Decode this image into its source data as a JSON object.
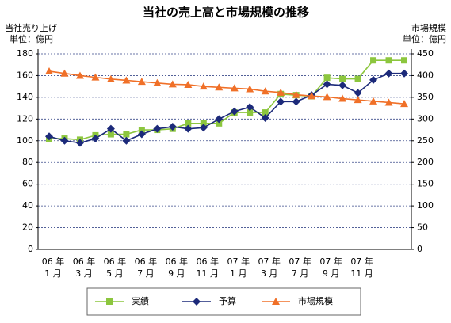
{
  "chart_data": {
    "type": "line",
    "title": "当社の売上高と市場規模の推移",
    "y_label": [
      "当社売り上げ",
      "単位：億円"
    ],
    "y2_label": [
      "市場規模",
      "単位：億円"
    ],
    "categories": [
      "06 年\n1 月",
      null,
      "06 年\n3 月",
      null,
      "06 年\n5 月",
      null,
      "06 年\n7 月",
      null,
      "06 年\n9 月",
      null,
      "06 年\n11 月",
      null,
      "07 年\n1 月",
      null,
      "07 年\n3 月",
      null,
      "07 年\n7 月",
      null,
      "07 年\n9 月",
      null,
      "07 年\n11 月",
      null,
      null,
      null
    ],
    "series": [
      {
        "name": "実績",
        "color": "#8cc63e",
        "marker": "square",
        "values": [
          102,
          102,
          101,
          105,
          106,
          106,
          110,
          110,
          111,
          116,
          116,
          116,
          126,
          126,
          126,
          143,
          142,
          141,
          158,
          157,
          157,
          174,
          174,
          174
        ]
      },
      {
        "name": "予算",
        "color": "#1c2a7a",
        "marker": "diamond",
        "values": [
          104,
          100,
          98,
          102,
          111,
          100,
          106,
          111,
          113,
          111,
          112,
          120,
          127,
          131,
          121,
          136,
          136,
          142,
          152,
          151,
          144,
          156,
          162,
          162
        ]
      },
      {
        "name": "市場規模",
        "color": "#f07028",
        "marker": "triangle",
        "axis": "y2",
        "values": [
          410,
          405,
          400,
          396,
          392,
          389,
          386,
          383,
          380,
          379,
          375,
          373,
          371,
          369,
          364,
          361,
          356,
          353,
          351,
          347,
          344,
          341,
          338,
          335
        ]
      }
    ],
    "ylim": [
      0,
      180
    ],
    "yticks": [
      0,
      20,
      40,
      60,
      80,
      100,
      120,
      140,
      160,
      180
    ],
    "y2lim": [
      0,
      450
    ],
    "y2ticks": [
      0,
      50,
      100,
      150,
      200,
      250,
      300,
      350,
      400,
      450
    ],
    "grid": true,
    "legend": "bottom"
  }
}
